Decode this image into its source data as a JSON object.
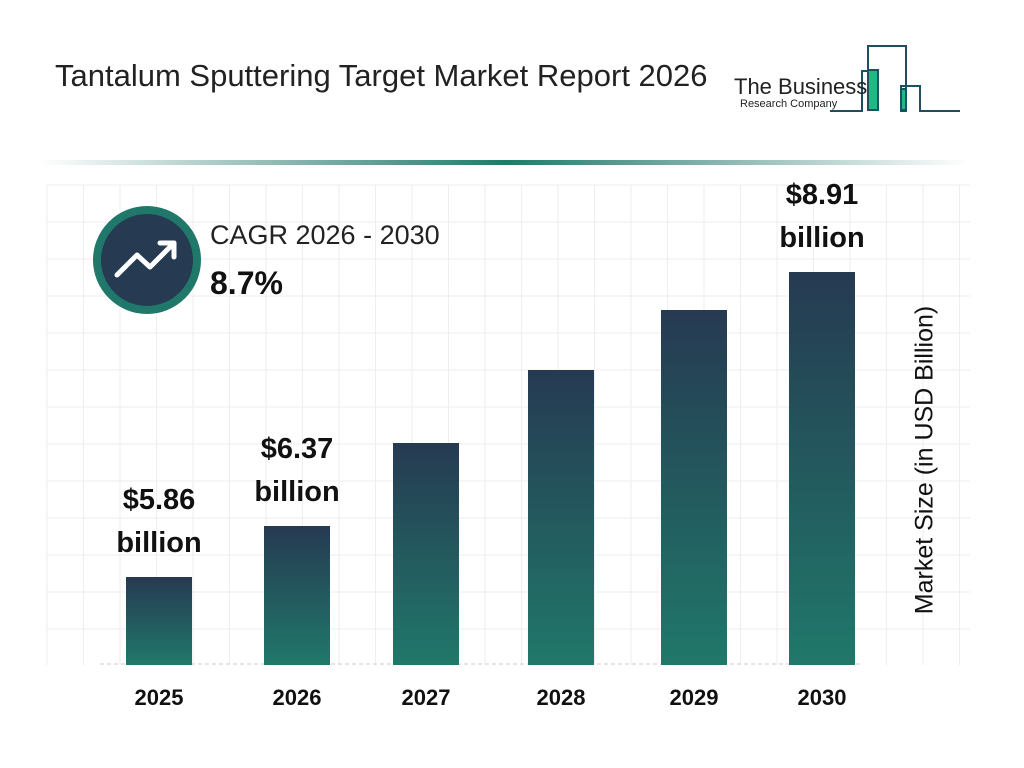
{
  "header": {
    "title": "Tantalum Sputtering Target Market Report 2026"
  },
  "logo": {
    "line1": "The Business",
    "line2": "Research Company",
    "colors": {
      "outline": "#1f4e5f",
      "fill": "#20b986"
    }
  },
  "cagr": {
    "label": "CAGR 2026 - 2030",
    "value": "8.7%",
    "icon": "trending-up-icon"
  },
  "chart_data": {
    "type": "bar",
    "categories": [
      "2025",
      "2026",
      "2027",
      "2028",
      "2029",
      "2030"
    ],
    "values": [
      5.86,
      6.37,
      7.2,
      7.93,
      8.53,
      8.91
    ],
    "data_labels": [
      {
        "index": 0,
        "line1": "$5.86",
        "line2": "billion"
      },
      {
        "index": 1,
        "line1": "$6.37",
        "line2": "billion"
      },
      {
        "index": 5,
        "line1": "$8.91",
        "line2": "billion"
      }
    ],
    "ylabel": "Market Size (in USD Billion)",
    "xlabel": "",
    "grid": true,
    "colors": {
      "bar_top": "#263a52",
      "bar_bottom": "#20786a"
    }
  }
}
